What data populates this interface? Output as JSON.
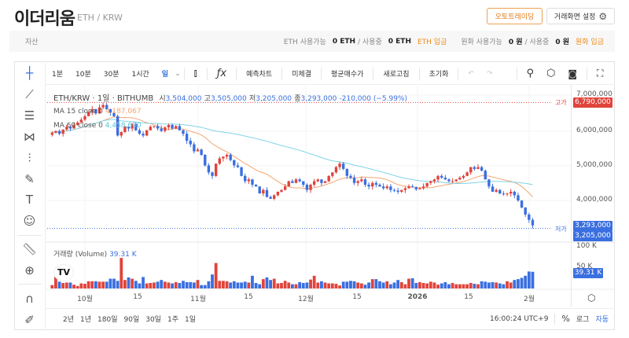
{
  "header": {
    "title": "이더리움",
    "pair": "ETH / KRW",
    "autotrading": "오토트레이딩",
    "settings": "거래화면 설정"
  },
  "assets": {
    "label": "자산",
    "eth_avail_label": "ETH 사용가능",
    "eth_avail": "0 ETH",
    "in_use_label": "/ 사용중",
    "eth_in_use": "0 ETH",
    "eth_deposit": "ETH 입금",
    "krw_avail_label": "원화 사용가능",
    "krw_avail": "0 원",
    "krw_in_use_label": "/ 사용중",
    "krw_in_use": "0 원",
    "krw_deposit": "원화 입금"
  },
  "toolbar": {
    "intervals": [
      "1분",
      "10분",
      "30분",
      "1시간",
      "일"
    ],
    "selected": "일",
    "buttons": [
      "예측차트",
      "미체결",
      "평균매수가",
      "새로고침",
      "초기화"
    ]
  },
  "legend": {
    "symbol": "ETH/KRW · 1일 · BITHUMB",
    "o_label": "시",
    "open": "3,504,000",
    "h_label": "고",
    "high": "3,505,000",
    "l_label": "저",
    "low": "3,205,000",
    "c_label": "종",
    "close": "3,293,000",
    "change": "-210,000 (−5.99%)",
    "ma15_label": "MA 15 close 0",
    "ma15": "4,187,067",
    "ma60_label": "MA 60 close 0",
    "ma60": "4,458,600",
    "volume_label": "거래량 (Volume)",
    "volume": "39.31 K"
  },
  "price_axis": {
    "ticks": [
      "7,000,000",
      "6,000,000",
      "5,000,000",
      "4,000,000"
    ],
    "high_label": "고가",
    "high_tag": "6,790,000",
    "low_label": "저가",
    "close_tag": "3,293,000",
    "low_tag": "3,205,000",
    "vol_ticks": [
      "100 K",
      "50 K"
    ],
    "vol_tag": "39.31 K"
  },
  "time_axis": [
    "10월",
    "15",
    "11월",
    "15",
    "12월",
    "15",
    "2026",
    "15",
    "2월"
  ],
  "ranges": [
    "2년",
    "1년",
    "180일",
    "90일",
    "30일",
    "1주",
    "1일"
  ],
  "footer": {
    "time": "16:00:24 UTC+9",
    "pct": "%",
    "log": "로그",
    "auto": "자동"
  },
  "colors": {
    "up": "#e0443b",
    "down": "#3a6fe0",
    "ma15": "#f4a572",
    "ma60": "#7fd3e6",
    "accent": "#f08a18"
  },
  "chart_data": {
    "type": "candlestick",
    "start": "2025-09-22",
    "end": "2026-02-01",
    "interval": "1d",
    "closes": [
      5930000,
      5980000,
      5900000,
      6020000,
      6100000,
      6050000,
      6150000,
      6220000,
      6300000,
      6400000,
      6520000,
      6600000,
      6480000,
      6650000,
      6720000,
      6600000,
      6500000,
      6400000,
      5850000,
      5950000,
      6100000,
      6050000,
      6180000,
      6000000,
      5900000,
      5850000,
      6000000,
      6100000,
      6120000,
      6050000,
      5980000,
      6080000,
      6150000,
      6050000,
      6120000,
      6000000,
      5900000,
      5700000,
      5600000,
      5400000,
      5450000,
      5300000,
      5000000,
      4800000,
      4700000,
      5050000,
      5200000,
      5250000,
      5300000,
      5150000,
      5000000,
      4950000,
      4700000,
      4550000,
      4600000,
      4450000,
      4400000,
      4200000,
      4300000,
      4100000,
      4050000,
      4150000,
      4250000,
      4300000,
      4400000,
      4550000,
      4500000,
      4600000,
      4550000,
      4450000,
      4300000,
      4450000,
      4550000,
      4600000,
      4500000,
      4550000,
      4700000,
      4800000,
      4950000,
      5050000,
      4900000,
      4700000,
      4650000,
      4500000,
      4550000,
      4600000,
      4450000,
      4400000,
      4500000,
      4450000,
      4400000,
      4350000,
      4400000,
      4300000,
      4280000,
      4250000,
      4300000,
      4350000,
      4400000,
      4380000,
      4320000,
      4350000,
      4400000,
      4500000,
      4550000,
      4600000,
      4700000,
      4650000,
      4600000,
      4550000,
      4550000,
      4600000,
      4650000,
      4700000,
      4800000,
      4950000,
      4900000,
      4950000,
      4850000,
      4600000,
      4400000,
      4250000,
      4300000,
      4200000,
      4180000,
      4200000,
      4250000,
      4150000,
      4000000,
      3800000,
      3600000,
      3450000,
      3293000
    ],
    "volumes_k": [
      8,
      28,
      16,
      13,
      14,
      14,
      9,
      6,
      12,
      11,
      17,
      17,
      17,
      16,
      16,
      16,
      23,
      23,
      18,
      72,
      20,
      26,
      23,
      18,
      12,
      27,
      12,
      13,
      14,
      16,
      20,
      16,
      14,
      12,
      15,
      13,
      18,
      15,
      15,
      14,
      20,
      8,
      8,
      17,
      33,
      60,
      18,
      18,
      17,
      14,
      17,
      14,
      14,
      16,
      14,
      30,
      13,
      10,
      22,
      26,
      20,
      23,
      12,
      13,
      18,
      14,
      10,
      10,
      15,
      13,
      14,
      21,
      30,
      14,
      17,
      14,
      12,
      12,
      11,
      7,
      16,
      16,
      18,
      17,
      14,
      12,
      9,
      14,
      22,
      22,
      17,
      14,
      17,
      10,
      14,
      20,
      15,
      10,
      23,
      24,
      13,
      15,
      13,
      12,
      16,
      14,
      9,
      12,
      15,
      10,
      13,
      10,
      10,
      10,
      10,
      13,
      11,
      10,
      17,
      16,
      14,
      15,
      14,
      12,
      10,
      17,
      14,
      20,
      22,
      25,
      30,
      40,
      39.31
    ],
    "ylim": [
      3000000,
      7400000
    ],
    "vol_ylim": [
      0,
      110
    ],
    "high": 6790000,
    "low": 3205000,
    "ma_periods": [
      15,
      60
    ]
  }
}
